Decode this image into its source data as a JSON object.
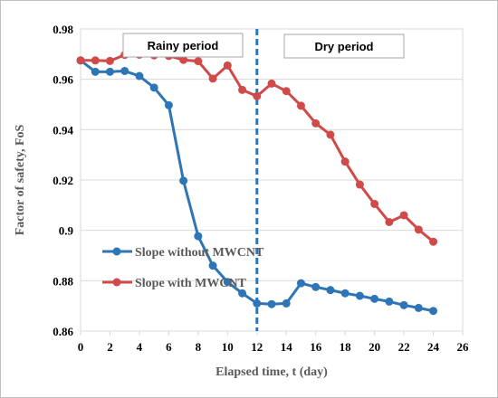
{
  "chart_data": {
    "type": "line",
    "title": "",
    "xlabel": "Elapsed time, t (day)",
    "ylabel": "Factor of safety, FoS",
    "xlim": [
      0,
      26
    ],
    "ylim": [
      0.86,
      0.98
    ],
    "x_ticks": [
      0,
      2,
      4,
      6,
      8,
      10,
      12,
      14,
      16,
      18,
      20,
      22,
      24,
      26
    ],
    "y_ticks": [
      0.86,
      0.88,
      0.9,
      0.92,
      0.94,
      0.96,
      0.98
    ],
    "y_tick_labels": [
      "0.86",
      "0.88",
      "0.9",
      "0.92",
      "0.94",
      "0.96",
      "0.98"
    ],
    "grid": "horizontal",
    "legend_position": "bottom-left",
    "annotations": {
      "divider_x": 12,
      "rainy_label": "Rainy period",
      "dry_label": "Dry period"
    },
    "series": [
      {
        "name": "Slope without MWCNT",
        "color": "#2e75b6",
        "x": [
          0,
          1,
          2,
          3,
          4,
          5,
          6,
          7,
          8,
          9,
          10,
          11,
          12,
          13,
          14,
          15,
          16,
          17,
          18,
          19,
          20,
          21,
          22,
          23,
          24
        ],
        "y": [
          0.9675,
          0.963,
          0.963,
          0.9633,
          0.9613,
          0.9567,
          0.9497,
          0.9197,
          0.8977,
          0.886,
          0.8795,
          0.875,
          0.871,
          0.8707,
          0.871,
          0.879,
          0.8775,
          0.8763,
          0.875,
          0.874,
          0.8728,
          0.8717,
          0.8703,
          0.8692,
          0.868
        ]
      },
      {
        "name": "Slope with MWCNT",
        "color": "#d04a4a",
        "x": [
          0,
          1,
          2,
          3,
          4,
          5,
          6,
          7,
          8,
          9,
          10,
          11,
          12,
          13,
          14,
          15,
          16,
          17,
          18,
          19,
          20,
          21,
          22,
          23,
          24
        ],
        "y": [
          0.9675,
          0.9675,
          0.9673,
          0.9697,
          0.9698,
          0.9695,
          0.9693,
          0.9677,
          0.9672,
          0.9603,
          0.9655,
          0.9558,
          0.9533,
          0.9583,
          0.9553,
          0.9495,
          0.9425,
          0.938,
          0.9273,
          0.9182,
          0.9105,
          0.9033,
          0.906,
          0.9003,
          0.8955
        ]
      }
    ]
  }
}
